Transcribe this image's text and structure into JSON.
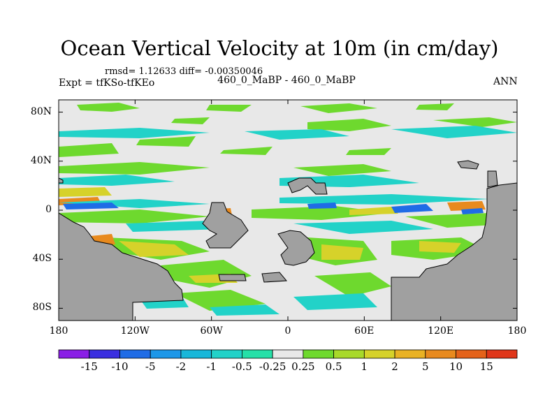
{
  "title": "Ocean Vertical Velocity at 10m (in cm/day)",
  "stats": "rmsd= 1.12633 diff= -0.00350046",
  "left_label": "Expt = tfKSo-tfKEo",
  "center_label": "460_0_MaBP - 460_0_MaBP",
  "right_label": "ANN",
  "y_axis": {
    "ticks": [
      "80N",
      "40N",
      "0",
      "40S",
      "80S"
    ],
    "values": [
      80,
      40,
      0,
      -40,
      -80
    ],
    "range": [
      -90,
      90
    ]
  },
  "x_axis": {
    "ticks": [
      "180",
      "120W",
      "60W",
      "0",
      "60E",
      "120E",
      "180"
    ],
    "values": [
      -180,
      -120,
      -60,
      0,
      60,
      120,
      180
    ],
    "range": [
      -180,
      180
    ]
  },
  "colorbar": {
    "labels": [
      "-15",
      "-10",
      "-5",
      "-2",
      "-1",
      "-0.5",
      "-0.25",
      "0.25",
      "0.5",
      "1",
      "2",
      "5",
      "10",
      "15"
    ],
    "colors": [
      "#8a1fe6",
      "#3a2ee0",
      "#1f6ce6",
      "#1d97e8",
      "#18b7d9",
      "#22d2c8",
      "#26e0a8",
      "#e8e8e8",
      "#6ed92e",
      "#a8d92a",
      "#d6d22a",
      "#e9b224",
      "#e88a1e",
      "#e4621a",
      "#e0361a"
    ]
  },
  "colors": {
    "land": "#a0a0a0",
    "ocean_neutral": "#e8e8e8"
  }
}
